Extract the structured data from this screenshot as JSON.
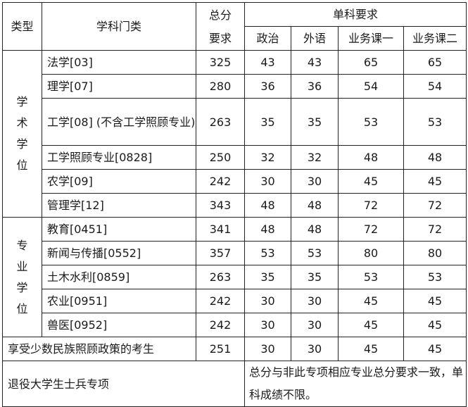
{
  "headers": {
    "type": "类型",
    "subject": "学科门类",
    "total": "总分要求",
    "single": "单科要求",
    "politics": "政治",
    "language": "外语",
    "course1": "业务课一",
    "course2": "业务课二"
  },
  "groups": [
    {
      "type": "学术学位",
      "rows": [
        {
          "subject": "法学[03]",
          "total": "325",
          "politics": "43",
          "language": "43",
          "course1": "65",
          "course2": "65"
        },
        {
          "subject": "理学[07]",
          "total": "280",
          "politics": "36",
          "language": "36",
          "course1": "54",
          "course2": "54"
        },
        {
          "subject": "工学[08] (不含工学照顾专业)",
          "total": "263",
          "politics": "35",
          "language": "35",
          "course1": "53",
          "course2": "53"
        },
        {
          "subject": "工学照顾专业[0828]",
          "total": "250",
          "politics": "32",
          "language": "32",
          "course1": "48",
          "course2": "48"
        },
        {
          "subject": "农学[09]",
          "total": "242",
          "politics": "30",
          "language": "30",
          "course1": "45",
          "course2": "45"
        },
        {
          "subject": "管理学[12]",
          "total": "343",
          "politics": "48",
          "language": "48",
          "course1": "72",
          "course2": "72"
        }
      ]
    },
    {
      "type": "专业学位",
      "rows": [
        {
          "subject": "教育[0451]",
          "total": "341",
          "politics": "48",
          "language": "48",
          "course1": "72",
          "course2": "72"
        },
        {
          "subject": "新闻与传播[0552]",
          "total": "357",
          "politics": "53",
          "language": "53",
          "course1": "80",
          "course2": "80"
        },
        {
          "subject": "土木水利[0859]",
          "total": "263",
          "politics": "35",
          "language": "35",
          "course1": "53",
          "course2": "53"
        },
        {
          "subject": "农业[0951]",
          "total": "242",
          "politics": "30",
          "language": "30",
          "course1": "45",
          "course2": "45"
        },
        {
          "subject": "兽医[0952]",
          "total": "242",
          "politics": "30",
          "language": "30",
          "course1": "45",
          "course2": "45"
        }
      ]
    }
  ],
  "minority": {
    "label": "享受少数民族照顾政策的考生",
    "total": "251",
    "politics": "30",
    "language": "30",
    "course1": "45",
    "course2": "45"
  },
  "veteran": {
    "label": "退役大学生士兵专项",
    "note": "总分与非此专项相应专业总分要求一致，单科成绩不限。"
  }
}
